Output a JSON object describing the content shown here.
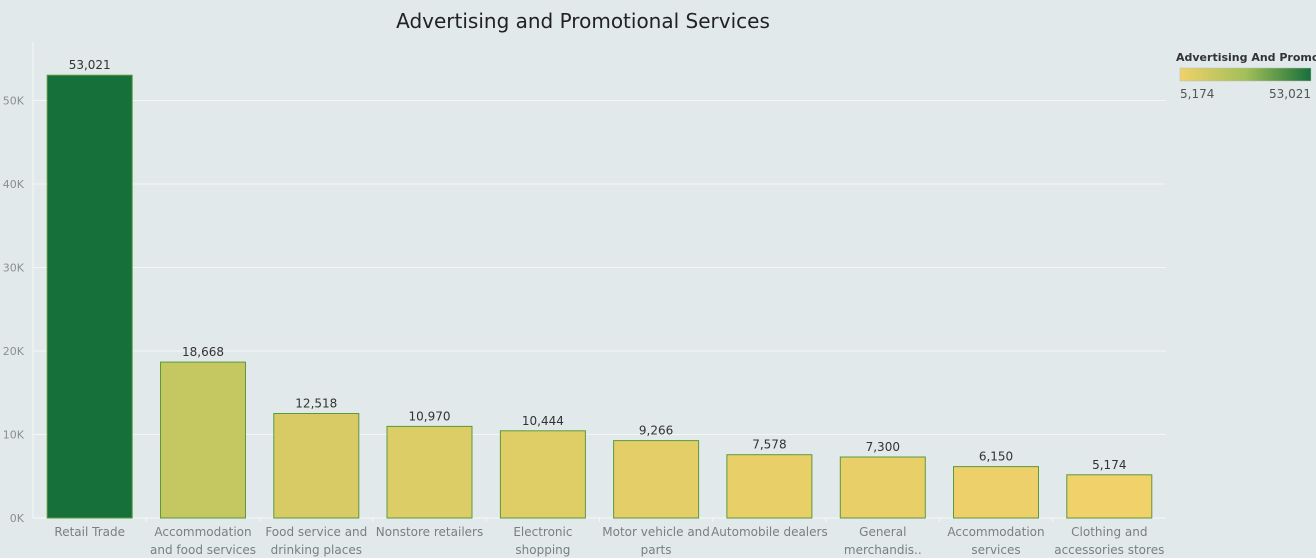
{
  "chart_data": {
    "type": "bar",
    "title": "Advertising and Promotional Services",
    "xlabel": "",
    "ylabel": "",
    "categories": [
      [
        "Retail Trade"
      ],
      [
        "Accommodation",
        "and food services"
      ],
      [
        "Food service and",
        "drinking places"
      ],
      [
        "Nonstore retailers"
      ],
      [
        "Electronic",
        "shopping"
      ],
      [
        "Motor vehicle and",
        "parts"
      ],
      [
        "Automobile dealers"
      ],
      [
        "General",
        "merchandis.."
      ],
      [
        "Accommodation",
        "services"
      ],
      [
        "Clothing and",
        "accessories stores"
      ]
    ],
    "values": [
      53021,
      18668,
      12518,
      10970,
      10444,
      9266,
      7578,
      7300,
      6150,
      5174
    ],
    "value_labels": [
      "53,021",
      "18,668",
      "12,518",
      "10,970",
      "10,444",
      "9,266",
      "7,578",
      "7,300",
      "6,150",
      "5,174"
    ],
    "ylim": [
      0,
      57000
    ],
    "yticks": [
      0,
      10000,
      20000,
      30000,
      40000,
      50000
    ],
    "ytick_labels": [
      "0K",
      "10K",
      "20K",
      "30K",
      "40K",
      "50K"
    ],
    "grid": true,
    "legend": {
      "title": "Advertising And Promo..",
      "min_label": "5,174",
      "max_label": "53,021",
      "placement": "top-right"
    },
    "colors": {
      "low": "#f0d16a",
      "mid": "#a3bf59",
      "high": "#16703a",
      "bar_stroke": "#5a9a3c",
      "grid": "#f3f6f6",
      "background": "#e1e9ea"
    }
  }
}
